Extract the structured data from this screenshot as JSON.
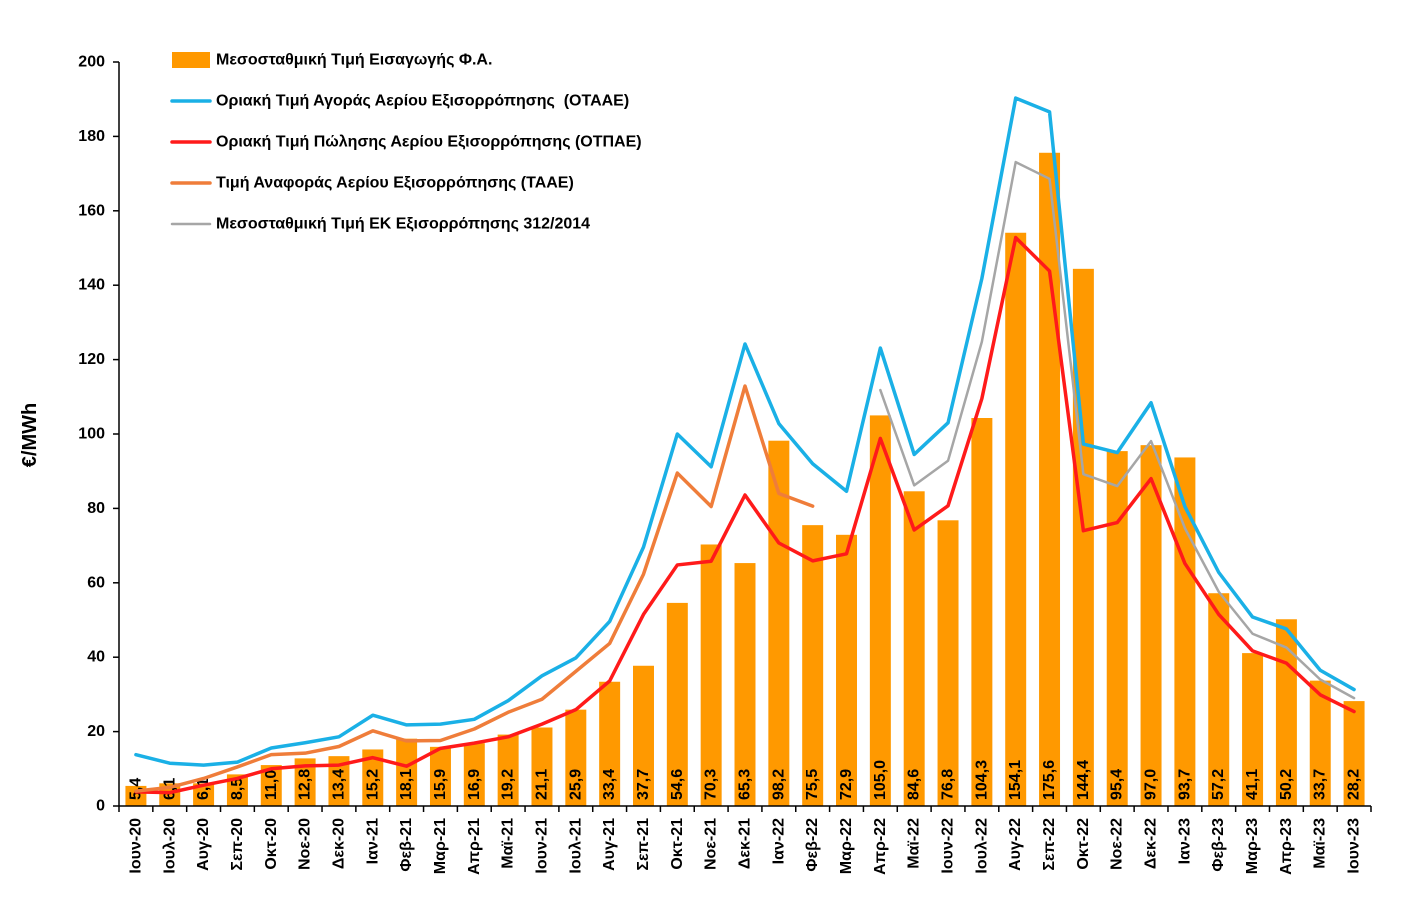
{
  "chart_data": {
    "type": "bar",
    "ylabel": "€/MWh",
    "ylim": [
      0,
      200
    ],
    "ytick_step": 20,
    "grid": false,
    "legend_position": "top-left",
    "categories": [
      "Ιουν-20",
      "Ιουλ-20",
      "Αυγ-20",
      "Σεπ-20",
      "Οκτ-20",
      "Νοε-20",
      "Δεκ-20",
      "Ιαν-21",
      "Φεβ-21",
      "Μαρ-21",
      "Απρ-21",
      "Μαϊ-21",
      "Ιουν-21",
      "Ιουλ-21",
      "Αυγ-21",
      "Σεπ-21",
      "Οκτ-21",
      "Νοε-21",
      "Δεκ-21",
      "Ιαν-22",
      "Φεβ-22",
      "Μαρ-22",
      "Απρ-22",
      "Μαϊ-22",
      "Ιουν-22",
      "Ιουλ-22",
      "Αυγ-22",
      "Σεπ-22",
      "Οκτ-22",
      "Νοε-22",
      "Δεκ-22",
      "Ιαν-23",
      "Φεβ-23",
      "Μαρ-23",
      "Απρ-23",
      "Μαϊ-23",
      "Ιουν-23"
    ],
    "series": [
      {
        "name": "Μεσοσταθμική Τιμή Εισαγωγής Φ.Α.",
        "kind": "bar",
        "color": "#ff9900",
        "values": [
          5.4,
          6.1,
          6.1,
          8.5,
          11.0,
          12.8,
          13.4,
          15.2,
          18.1,
          15.9,
          16.9,
          19.2,
          21.1,
          25.9,
          33.4,
          37.7,
          54.6,
          70.3,
          65.3,
          98.2,
          75.5,
          72.9,
          105.0,
          84.6,
          76.8,
          104.3,
          154.1,
          175.6,
          144.4,
          95.4,
          97.0,
          93.7,
          57.2,
          41.1,
          50.2,
          33.7,
          28.2
        ],
        "labels": [
          "5,4",
          "6,1",
          "6,1",
          "8,5",
          "11,0",
          "12,8",
          "13,4",
          "15,2",
          "18,1",
          "15,9",
          "16,9",
          "19,2",
          "21,1",
          "25,9",
          "33,4",
          "37,7",
          "54,6",
          "70,3",
          "65,3",
          "98,2",
          "75,5",
          "72,9",
          "105,0",
          "84,6",
          "76,8",
          "104,3",
          "154,1",
          "175,6",
          "144,4",
          "95,4",
          "97,0",
          "93,7",
          "57,2",
          "41,1",
          "50,2",
          "33,7",
          "28,2"
        ]
      },
      {
        "name": "Οριακή Τιμή Αγοράς Αερίου Εξισορρόπησης  (ΟΤΑΑΕ)",
        "kind": "line",
        "color": "#1ab0e6",
        "width": 3.5,
        "values": [
          13.8,
          11.5,
          11.0,
          11.8,
          15.6,
          17.0,
          18.6,
          24.4,
          21.8,
          22.0,
          23.3,
          28.3,
          35.0,
          39.8,
          49.6,
          69.6,
          100.0,
          91.2,
          124.2,
          102.8,
          92.0,
          84.6,
          123.1,
          94.5,
          103.0,
          141.8,
          190.3,
          186.6,
          97.3,
          95.0,
          108.4,
          80.5,
          62.8,
          50.8,
          47.6,
          36.5,
          31.3
        ]
      },
      {
        "name": "Οριακή Τιμή Πώλησης Αερίου Εξισορρόπησης (ΟΤΠΑΕ)",
        "kind": "line",
        "color": "#ff1a1a",
        "width": 3.5,
        "values": [
          3.8,
          3.6,
          5.6,
          7.4,
          10.0,
          10.8,
          11.0,
          13.0,
          10.7,
          15.5,
          16.9,
          18.6,
          22.0,
          25.9,
          33.6,
          51.5,
          64.8,
          65.8,
          83.6,
          70.7,
          65.9,
          67.8,
          98.8,
          74.2,
          80.7,
          109.5,
          152.8,
          143.8,
          74.0,
          76.2,
          88.0,
          65.2,
          51.5,
          41.7,
          38.4,
          29.9,
          25.4
        ]
      },
      {
        "name": "Τιμή Αναφοράς Αερίου Εξισορρόπησης (ΤΑΑΕ)",
        "kind": "line",
        "color": "#ef7d3a",
        "width": 3.5,
        "values": [
          4.0,
          5.0,
          7.4,
          10.5,
          13.8,
          14.2,
          16.0,
          20.2,
          17.5,
          17.6,
          20.7,
          25.2,
          28.7,
          36.2,
          43.7,
          62.3,
          89.5,
          80.5,
          112.9,
          84.0,
          80.6,
          null,
          null,
          null,
          null,
          null,
          null,
          null,
          null,
          null,
          null,
          null,
          null,
          null,
          null,
          null,
          null
        ]
      },
      {
        "name": "Μεσοσταθμική Τιμή ΕΚ Εξισορρόπησης 312/2014",
        "kind": "line",
        "color": "#a6a6a6",
        "width": 2.5,
        "values": [
          null,
          null,
          null,
          null,
          null,
          null,
          null,
          null,
          null,
          null,
          null,
          null,
          null,
          null,
          null,
          null,
          null,
          null,
          null,
          null,
          null,
          null,
          111.8,
          86.2,
          92.8,
          124.8,
          173.1,
          168.6,
          89.2,
          86.0,
          98.1,
          74.7,
          57.6,
          46.3,
          42.6,
          34.0,
          29.0
        ]
      }
    ]
  }
}
